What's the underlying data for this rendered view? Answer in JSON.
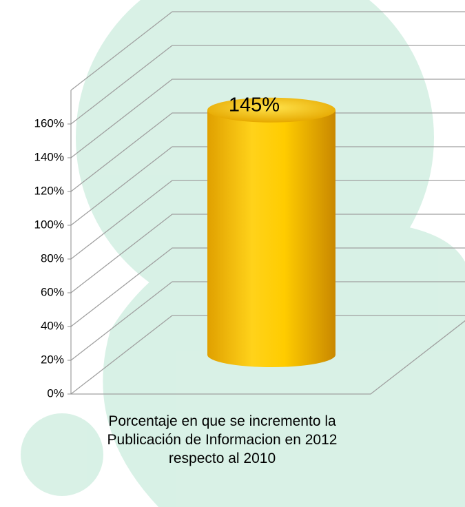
{
  "chart_data": {
    "type": "bar",
    "categories": [
      "Porcentaje en que se incremento la Publicación de Informacion en 2012 respecto al 2010"
    ],
    "values": [
      145
    ],
    "value_labels": [
      "145%"
    ],
    "color": "#ffc000",
    "ylim": [
      0,
      180
    ],
    "yticks": [
      {
        "value": 0,
        "label": "0%"
      },
      {
        "value": 20,
        "label": "20%"
      },
      {
        "value": 40,
        "label": "40%"
      },
      {
        "value": 60,
        "label": "60%"
      },
      {
        "value": 80,
        "label": "80%"
      },
      {
        "value": 100,
        "label": "100%"
      },
      {
        "value": 120,
        "label": "120%"
      },
      {
        "value": 140,
        "label": "140%"
      },
      {
        "value": 160,
        "label": "160%"
      }
    ],
    "grid": true
  }
}
